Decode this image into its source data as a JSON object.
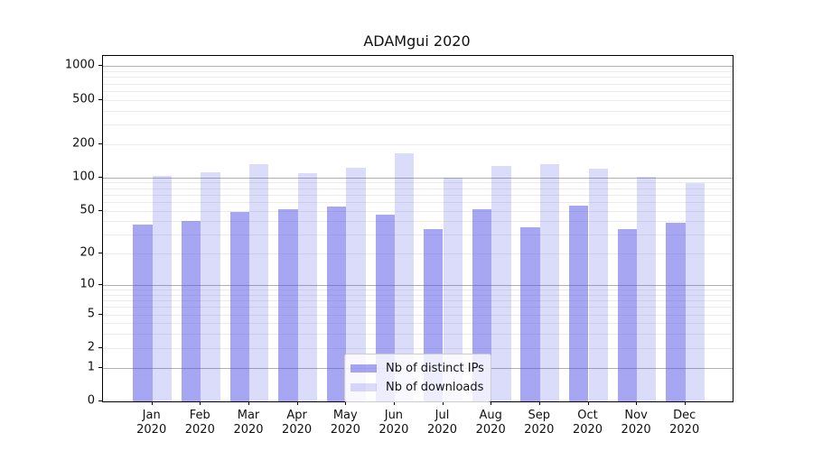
{
  "title": "ADAMgui 2020",
  "legend": {
    "items": [
      {
        "label": "Nb of distinct IPs"
      },
      {
        "label": "Nb of downloads"
      }
    ]
  },
  "colors": {
    "bar_dark": "#a6a6f2",
    "bar_light": "#dbdbfa",
    "bar_base_rgba_dark": "rgba(77,77,230,0.5)",
    "bar_base_rgba_light": "rgba(77,77,230,0.2)",
    "grid_major": "#b0b0b0",
    "grid_minor": "#ebebeb",
    "spine": "#000000",
    "legend_border": "#cccccc"
  },
  "chart_data": {
    "type": "bar",
    "title": "ADAMgui 2020",
    "categories": [
      "Jan",
      "Feb",
      "Mar",
      "Apr",
      "May",
      "Jun",
      "Jul",
      "Aug",
      "Sep",
      "Oct",
      "Nov",
      "Dec"
    ],
    "category_year": "2020",
    "series": [
      {
        "name": "Nb of distinct IPs",
        "color": "rgba(77,77,230,0.5)",
        "values": [
          37,
          40,
          49,
          51,
          54,
          46,
          34,
          51,
          35,
          56,
          34,
          39
        ]
      },
      {
        "name": "Nb of downloads",
        "color": "rgba(77,77,230,0.2)",
        "values": [
          104,
          112,
          133,
          110,
          123,
          165,
          99,
          128,
          133,
          120,
          101,
          89
        ]
      }
    ],
    "yscale": "log1p",
    "yticks": [
      0,
      1,
      2,
      5,
      10,
      20,
      50,
      100,
      200,
      500,
      1000
    ],
    "ylim": [
      0,
      1235
    ],
    "grid": {
      "major": [
        1,
        10,
        100,
        1000
      ],
      "minor": [
        2,
        3,
        4,
        5,
        6,
        7,
        8,
        9,
        20,
        30,
        40,
        50,
        60,
        70,
        80,
        90,
        200,
        300,
        400,
        500,
        600,
        700,
        800,
        900
      ]
    },
    "legend_position": "lower center",
    "xlabel": "",
    "ylabel": ""
  }
}
